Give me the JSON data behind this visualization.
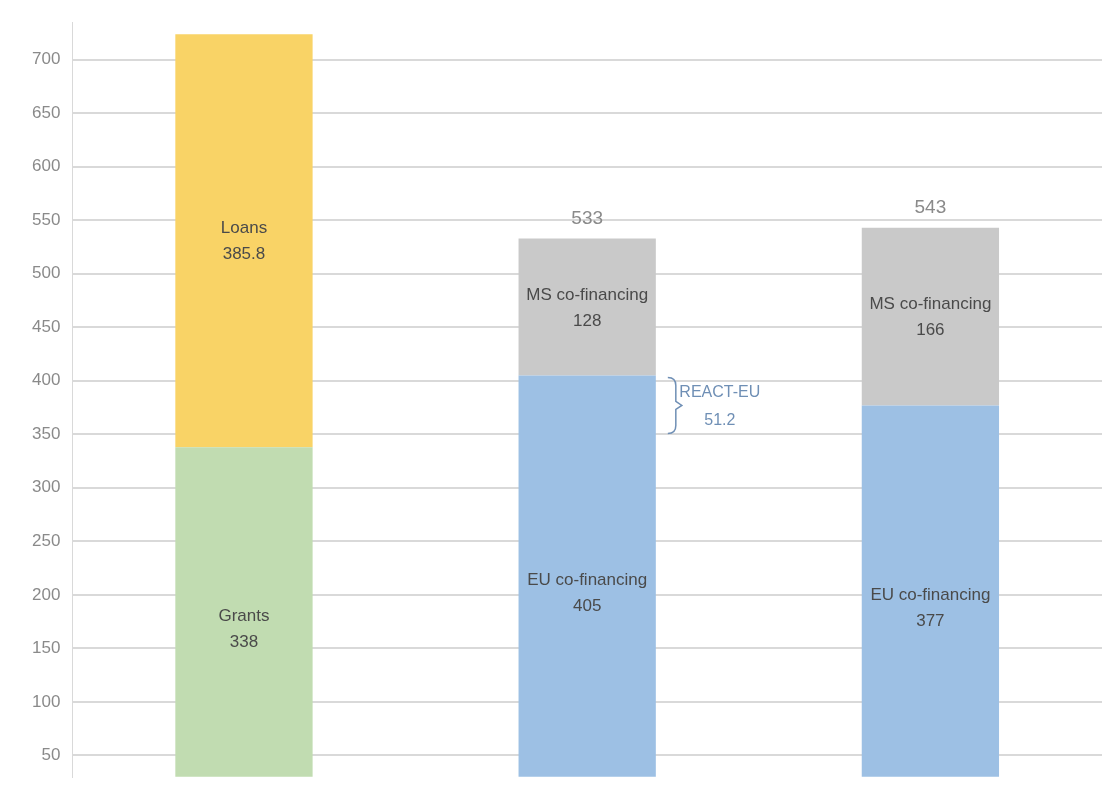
{
  "chart_data": {
    "type": "bar",
    "stacked": true,
    "categories": [
      null,
      null,
      null
    ],
    "series": [
      {
        "name": "Grants",
        "color": "#c1dcb1",
        "values": [
          338,
          null,
          null
        ]
      },
      {
        "name": "Loans",
        "color": "#f9d366",
        "values": [
          385.8,
          null,
          null
        ]
      },
      {
        "name": "EU co-financing",
        "color": "#9dc0e4",
        "values": [
          null,
          405,
          377
        ]
      },
      {
        "name": "MS co-financing",
        "color": "#c9c9c9",
        "values": [
          null,
          128,
          166
        ]
      }
    ],
    "totals": [
      null,
      "533",
      "543"
    ],
    "data_labels": true,
    "annotations": [
      "REACT-EU 51.2"
    ],
    "ylim": [
      30,
      735
    ],
    "yticks": [
      50,
      100,
      150,
      200,
      250,
      300,
      350,
      400,
      450,
      500,
      550,
      600,
      650,
      700
    ],
    "grid": "y",
    "legend": false,
    "tick_labels": "y"
  }
}
